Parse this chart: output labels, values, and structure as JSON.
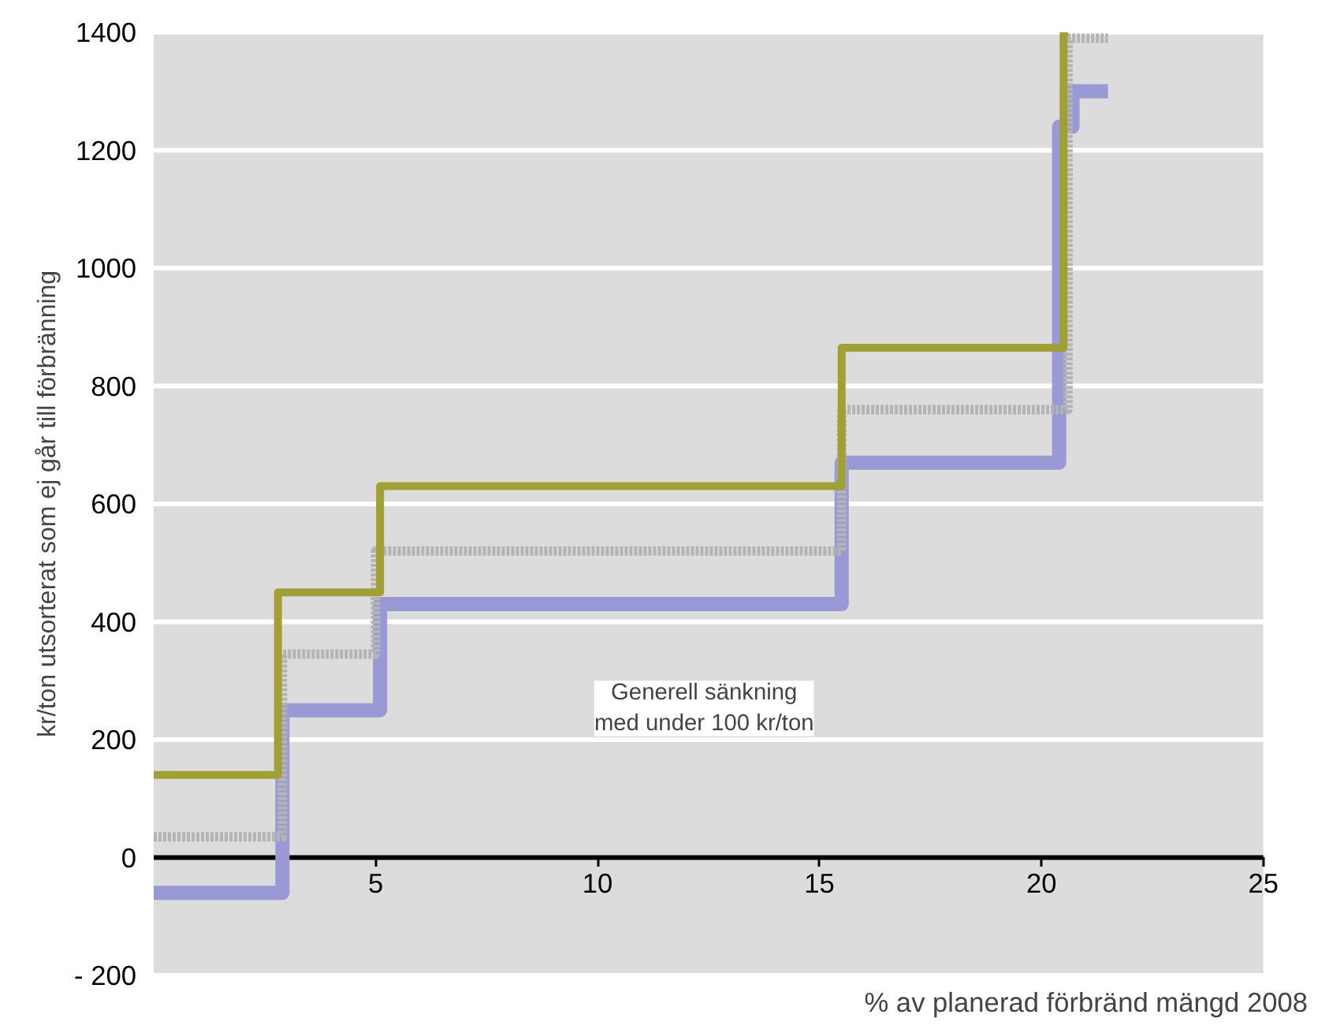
{
  "chart_data": {
    "type": "step",
    "xlabel": "% av planerad förbränd mängd 2008",
    "ylabel": "kr/ton utsorterat som ej går till förbränning",
    "xlim": [
      0,
      25
    ],
    "ylim": [
      -200,
      1400
    ],
    "xticks": [
      5,
      10,
      15,
      20,
      25
    ],
    "yticks": [
      {
        "value": -200,
        "label": "- 200"
      },
      0,
      200,
      400,
      600,
      800,
      1000,
      1200,
      1400
    ],
    "grid": "y",
    "series": [
      {
        "color": "#9999d6",
        "x": [
          0,
          2.9,
          5.1,
          15.5,
          20.4,
          20.7,
          21.5
        ],
        "values": [
          -60,
          250,
          430,
          670,
          1240,
          1300,
          1300
        ],
        "line_style": "solid"
      },
      {
        "color": "#b4b4b4",
        "x": [
          0,
          2.9,
          5.0,
          15.5,
          20.6,
          21.5
        ],
        "values": [
          35,
          345,
          520,
          760,
          1390,
          1390
        ],
        "line_style": "dotted"
      },
      {
        "color": "#a0a035",
        "x": [
          0,
          2.8,
          5.1,
          15.5,
          20.5,
          20.6
        ],
        "values": [
          140,
          450,
          630,
          865,
          1400,
          1400
        ],
        "line_style": "solid"
      }
    ],
    "annotations": [
      "Generell sänkning\nmed under 100 kr/ton"
    ]
  }
}
